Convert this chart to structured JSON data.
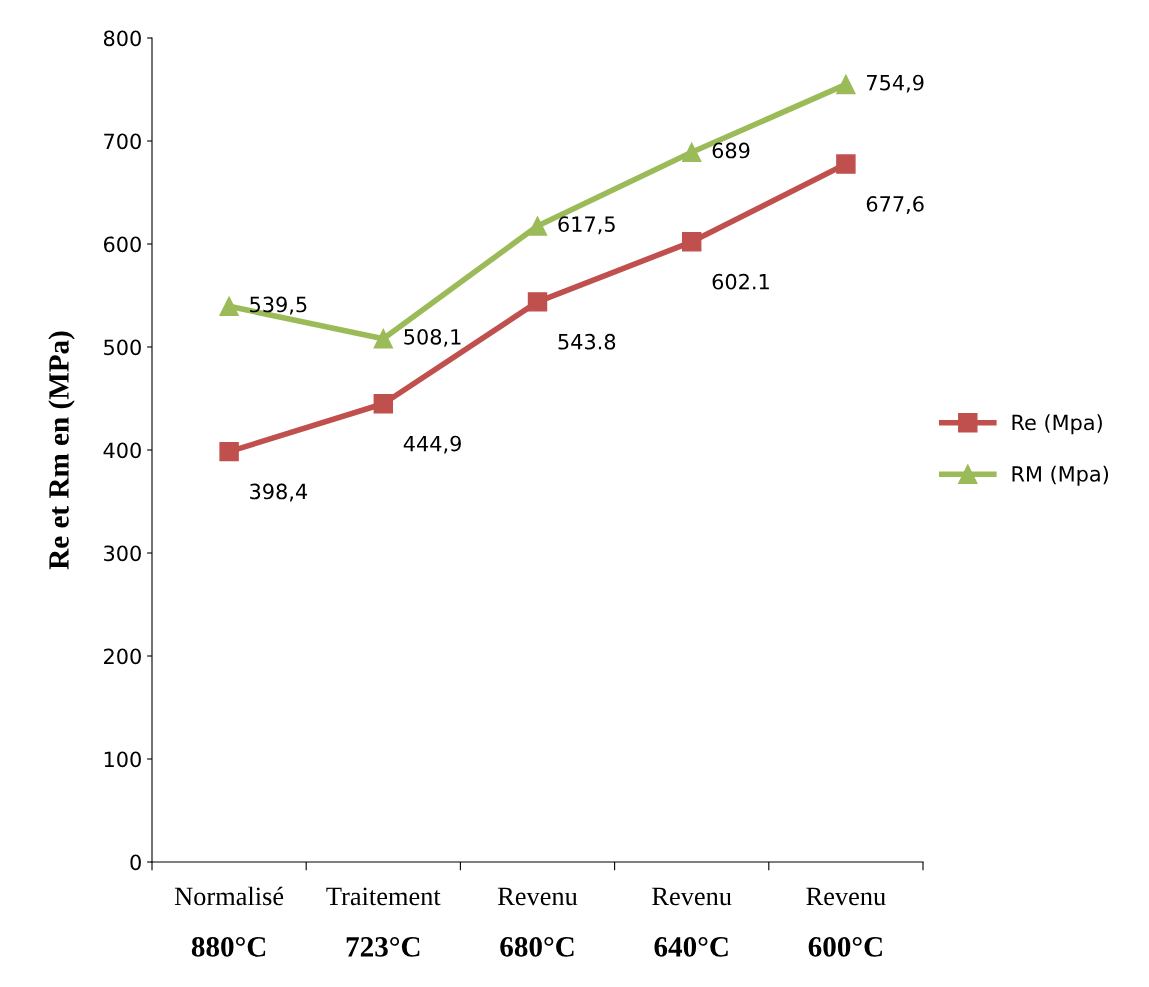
{
  "chart_data": {
    "type": "line",
    "ylabel": "Re et Rm en (MPa)",
    "categories": [
      "Normalisé\n880°C",
      "Traitement\n723°C",
      "Revenu\n680°C",
      "Revenu\n640°C",
      "Revenu\n600°C"
    ],
    "series": [
      {
        "name": "Re (Mpa)",
        "color": "#c0504d",
        "marker": "square",
        "values": [
          398.4,
          444.9,
          543.8,
          602.1,
          677.6
        ],
        "value_labels": [
          "398,4",
          "444,9",
          "543.8",
          "602.1",
          "677,6"
        ]
      },
      {
        "name": "RM (Mpa)",
        "color": "#9bbb59",
        "marker": "triangle",
        "values": [
          539.5,
          508.1,
          617.5,
          689,
          754.9
        ],
        "value_labels": [
          "539,5",
          "508,1",
          "617,5",
          "689",
          "754,9"
        ]
      }
    ],
    "ylim": [
      0,
      800
    ],
    "yticks": [
      0,
      100,
      200,
      300,
      400,
      500,
      600,
      700,
      800
    ],
    "grid": false,
    "legend": "right"
  }
}
